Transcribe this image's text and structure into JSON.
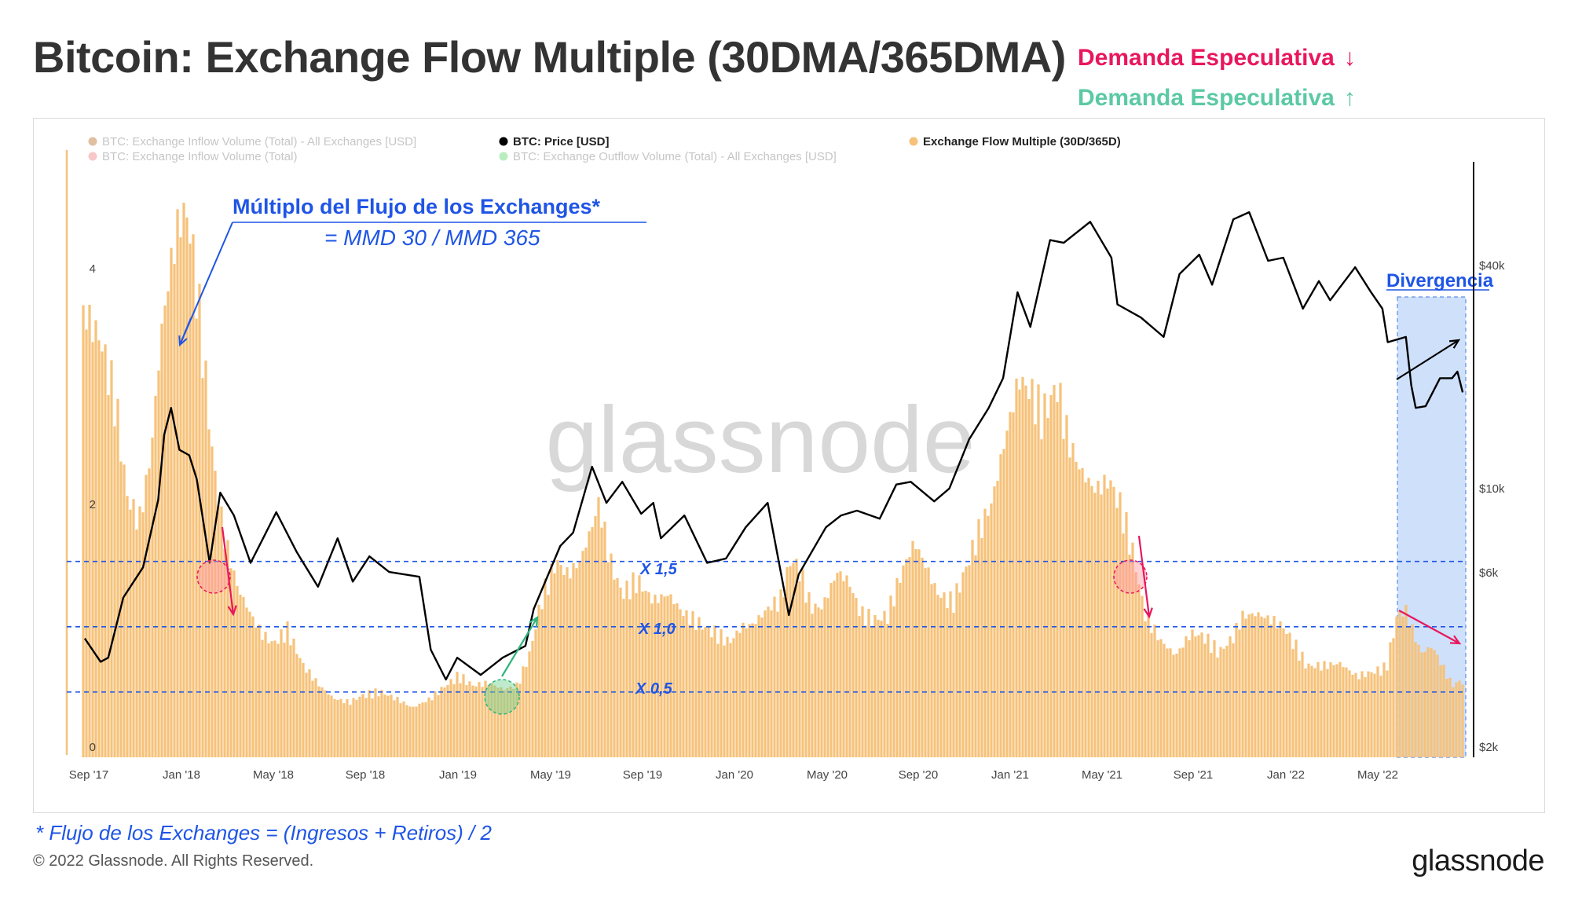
{
  "title": "Bitcoin: Exchange Flow Multiple (30DMA/365DMA)",
  "demand_down": {
    "label": "Demanda Especulativa",
    "arrow": "↓",
    "color": "#e8175d"
  },
  "demand_up": {
    "label": "Demanda Especulativa",
    "arrow": "↑",
    "color": "#5bc9a4"
  },
  "legend": [
    {
      "label": "BTC: Exchange Inflow Volume (Total) - All Exchanges [USD]",
      "color": "#c98a55",
      "faded": true
    },
    {
      "label": "BTC: Exchange Inflow Volume (Total)",
      "color": "#f29a9a",
      "faded": true
    },
    {
      "label": "BTC: Price [USD]",
      "color": "#000000",
      "faded": false
    },
    {
      "label": "BTC: Exchange Outflow Volume (Total) - All Exchanges [USD]",
      "color": "#7ee08a",
      "faded": true
    },
    {
      "label": "Exchange Flow Multiple (30D/365D)",
      "color": "#f6c27a",
      "faded": false
    }
  ],
  "annotations": {
    "main_label": "Múltiplo del Flujo de los Exchanges*",
    "main_formula": "= MMD 30 / MMD 365",
    "divergence": "Divergencia",
    "x15": "X 1,5",
    "x10": "X 1,0",
    "x05": "X 0,5"
  },
  "watermark": "glassnode",
  "footnote": "* Flujo de los Exchanges = (Ingresos + Retiros) / 2",
  "copyright": "© 2022 Glassnode. All Rights Reserved.",
  "brand": "glassnode",
  "colors": {
    "bars": "#f6c27a",
    "price": "#000000",
    "guides": "#1f55e6",
    "divergence_fill": "#cfe0fb",
    "down": "#e8175d",
    "up": "#2fb37c"
  },
  "chart_data": {
    "type": "bar",
    "title": "Bitcoin: Exchange Flow Multiple (30DMA/365DMA)",
    "x_ticks": [
      "Sep '17",
      "Jan '18",
      "May '18",
      "Sep '18",
      "Jan '19",
      "May '19",
      "Sep '19",
      "Jan '20",
      "May '20",
      "Sep '20",
      "Jan '21",
      "May '21",
      "Sep '21",
      "Jan '22",
      "May '22"
    ],
    "y_left": {
      "ticks": [
        "0",
        "2",
        "4"
      ],
      "range": [
        0,
        4.65
      ]
    },
    "y_right": {
      "ticks": [
        "$2k",
        "$6k",
        "$10k",
        "$40k"
      ],
      "scale": "log",
      "range": [
        2000,
        100000
      ]
    },
    "guides": [
      1.5,
      1.0,
      0.5
    ],
    "series": [
      {
        "name": "Exchange Flow Multiple (30D/365D)",
        "type": "bar",
        "points": [
          [
            "2017-08-25",
            3.4
          ],
          [
            "2017-09-15",
            3.2
          ],
          [
            "2017-10-05",
            2.7
          ],
          [
            "2017-10-20",
            2.0
          ],
          [
            "2017-11-05",
            1.8
          ],
          [
            "2017-11-20",
            2.3
          ],
          [
            "2017-12-05",
            3.3
          ],
          [
            "2017-12-20",
            3.9
          ],
          [
            "2018-01-01",
            4.18
          ],
          [
            "2018-01-10",
            4.1
          ],
          [
            "2018-01-25",
            3.3
          ],
          [
            "2018-02-10",
            2.3
          ],
          [
            "2018-02-25",
            1.7
          ],
          [
            "2018-03-15",
            1.3
          ],
          [
            "2018-04-01",
            1.1
          ],
          [
            "2018-04-15",
            0.95
          ],
          [
            "2018-05-01",
            0.87
          ],
          [
            "2018-05-20",
            0.97
          ],
          [
            "2018-06-10",
            0.7
          ],
          [
            "2018-07-01",
            0.55
          ],
          [
            "2018-07-20",
            0.45
          ],
          [
            "2018-08-10",
            0.42
          ],
          [
            "2018-08-25",
            0.47
          ],
          [
            "2018-09-20",
            0.5
          ],
          [
            "2018-10-10",
            0.45
          ],
          [
            "2018-11-01",
            0.38
          ],
          [
            "2018-11-25",
            0.45
          ],
          [
            "2018-12-15",
            0.55
          ],
          [
            "2019-01-01",
            0.62
          ],
          [
            "2019-01-20",
            0.55
          ],
          [
            "2019-02-10",
            0.57
          ],
          [
            "2019-03-01",
            0.52
          ],
          [
            "2019-03-20",
            0.55
          ],
          [
            "2019-04-05",
            0.8
          ],
          [
            "2019-04-20",
            1.2
          ],
          [
            "2019-05-10",
            1.5
          ],
          [
            "2019-05-25",
            1.4
          ],
          [
            "2019-06-10",
            1.5
          ],
          [
            "2019-06-25",
            1.75
          ],
          [
            "2019-07-05",
            1.95
          ],
          [
            "2019-07-20",
            1.5
          ],
          [
            "2019-08-05",
            1.25
          ],
          [
            "2019-08-25",
            1.35
          ],
          [
            "2019-09-15",
            1.2
          ],
          [
            "2019-10-05",
            1.25
          ],
          [
            "2019-10-25",
            1.1
          ],
          [
            "2019-11-15",
            1.02
          ],
          [
            "2019-12-05",
            0.95
          ],
          [
            "2019-12-25",
            0.88
          ],
          [
            "2020-01-10",
            1.0
          ],
          [
            "2020-01-25",
            1.02
          ],
          [
            "2020-02-15",
            1.15
          ],
          [
            "2020-03-01",
            1.2
          ],
          [
            "2020-03-15",
            1.52
          ],
          [
            "2020-03-25",
            1.45
          ],
          [
            "2020-04-10",
            1.15
          ],
          [
            "2020-04-25",
            1.15
          ],
          [
            "2020-05-15",
            1.42
          ],
          [
            "2020-05-30",
            1.35
          ],
          [
            "2020-06-15",
            1.1
          ],
          [
            "2020-07-01",
            1.05
          ],
          [
            "2020-07-20",
            1.08
          ],
          [
            "2020-08-10",
            1.45
          ],
          [
            "2020-08-25",
            1.65
          ],
          [
            "2020-09-10",
            1.45
          ],
          [
            "2020-09-25",
            1.25
          ],
          [
            "2020-10-15",
            1.18
          ],
          [
            "2020-11-01",
            1.45
          ],
          [
            "2020-11-20",
            1.75
          ],
          [
            "2020-12-05",
            1.95
          ],
          [
            "2020-12-25",
            2.5
          ],
          [
            "2021-01-10",
            2.9
          ],
          [
            "2021-01-25",
            2.8
          ],
          [
            "2021-02-10",
            2.6
          ],
          [
            "2021-03-01",
            2.85
          ],
          [
            "2021-03-15",
            2.45
          ],
          [
            "2021-04-01",
            2.2
          ],
          [
            "2021-04-20",
            2.05
          ],
          [
            "2021-05-10",
            2.12
          ],
          [
            "2021-05-25",
            1.9
          ],
          [
            "2021-06-10",
            1.55
          ],
          [
            "2021-06-25",
            1.1
          ],
          [
            "2021-07-15",
            0.9
          ],
          [
            "2021-08-05",
            0.78
          ],
          [
            "2021-08-25",
            0.95
          ],
          [
            "2021-09-10",
            0.93
          ],
          [
            "2021-10-01",
            0.8
          ],
          [
            "2021-10-20",
            0.92
          ],
          [
            "2021-11-01",
            1.08
          ],
          [
            "2021-11-20",
            1.1
          ],
          [
            "2021-12-10",
            1.05
          ],
          [
            "2021-12-25",
            1.0
          ],
          [
            "2022-01-10",
            0.85
          ],
          [
            "2022-01-25",
            0.7
          ],
          [
            "2022-02-15",
            0.7
          ],
          [
            "2022-03-10",
            0.72
          ],
          [
            "2022-04-01",
            0.62
          ],
          [
            "2022-04-20",
            0.65
          ],
          [
            "2022-05-10",
            0.68
          ],
          [
            "2022-05-25",
            1.1
          ],
          [
            "2022-06-05",
            1.12
          ],
          [
            "2022-06-15",
            0.95
          ],
          [
            "2022-06-25",
            0.8
          ],
          [
            "2022-07-10",
            0.85
          ],
          [
            "2022-07-25",
            0.68
          ],
          [
            "2022-08-05",
            0.55
          ],
          [
            "2022-08-15",
            0.58
          ]
        ]
      },
      {
        "name": "BTC: Price [USD]",
        "type": "line",
        "points": [
          [
            "2017-08-25",
            4300
          ],
          [
            "2017-09-15",
            3700
          ],
          [
            "2017-09-25",
            3800
          ],
          [
            "2017-10-15",
            5600
          ],
          [
            "2017-11-10",
            6800
          ],
          [
            "2017-11-30",
            10500
          ],
          [
            "2017-12-08",
            16000
          ],
          [
            "2017-12-17",
            19000
          ],
          [
            "2017-12-28",
            14500
          ],
          [
            "2018-01-10",
            14000
          ],
          [
            "2018-01-20",
            12000
          ],
          [
            "2018-02-06",
            7000
          ],
          [
            "2018-02-20",
            11000
          ],
          [
            "2018-03-10",
            9500
          ],
          [
            "2018-04-01",
            7000
          ],
          [
            "2018-04-15",
            8000
          ],
          [
            "2018-05-05",
            9700
          ],
          [
            "2018-06-01",
            7500
          ],
          [
            "2018-06-29",
            6000
          ],
          [
            "2018-07-25",
            8200
          ],
          [
            "2018-08-14",
            6200
          ],
          [
            "2018-09-05",
            7300
          ],
          [
            "2018-10-01",
            6600
          ],
          [
            "2018-11-10",
            6400
          ],
          [
            "2018-11-25",
            4000
          ],
          [
            "2018-12-15",
            3300
          ],
          [
            "2018-12-30",
            3800
          ],
          [
            "2019-01-30",
            3400
          ],
          [
            "2019-02-28",
            3800
          ],
          [
            "2019-03-30",
            4100
          ],
          [
            "2019-04-10",
            5200
          ],
          [
            "2019-05-15",
            7800
          ],
          [
            "2019-06-01",
            8500
          ],
          [
            "2019-06-26",
            13000
          ],
          [
            "2019-07-15",
            10300
          ],
          [
            "2019-08-05",
            11800
          ],
          [
            "2019-08-30",
            9600
          ],
          [
            "2019-09-15",
            10300
          ],
          [
            "2019-09-25",
            8200
          ],
          [
            "2019-10-26",
            9500
          ],
          [
            "2019-11-25",
            7000
          ],
          [
            "2019-12-20",
            7200
          ],
          [
            "2020-01-15",
            8800
          ],
          [
            "2020-02-13",
            10300
          ],
          [
            "2020-03-12",
            5000
          ],
          [
            "2020-03-25",
            6500
          ],
          [
            "2020-04-30",
            8800
          ],
          [
            "2020-05-20",
            9500
          ],
          [
            "2020-06-10",
            9800
          ],
          [
            "2020-07-10",
            9300
          ],
          [
            "2020-08-01",
            11600
          ],
          [
            "2020-08-20",
            11800
          ],
          [
            "2020-09-20",
            10400
          ],
          [
            "2020-10-10",
            11300
          ],
          [
            "2020-11-05",
            15500
          ],
          [
            "2020-12-01",
            19000
          ],
          [
            "2020-12-20",
            23000
          ],
          [
            "2021-01-08",
            40000
          ],
          [
            "2021-01-25",
            32000
          ],
          [
            "2021-02-20",
            56000
          ],
          [
            "2021-03-10",
            55000
          ],
          [
            "2021-04-14",
            63000
          ],
          [
            "2021-05-12",
            50000
          ],
          [
            "2021-05-20",
            37000
          ],
          [
            "2021-06-20",
            34000
          ],
          [
            "2021-07-20",
            30000
          ],
          [
            "2021-08-10",
            45000
          ],
          [
            "2021-09-05",
            51000
          ],
          [
            "2021-09-22",
            42000
          ],
          [
            "2021-10-20",
            64000
          ],
          [
            "2021-11-10",
            67000
          ],
          [
            "2021-12-05",
            49000
          ],
          [
            "2021-12-25",
            50000
          ],
          [
            "2022-01-20",
            36000
          ],
          [
            "2022-02-10",
            43000
          ],
          [
            "2022-02-25",
            38000
          ],
          [
            "2022-03-30",
            47000
          ],
          [
            "2022-04-20",
            40000
          ],
          [
            "2022-05-05",
            36000
          ],
          [
            "2022-05-12",
            29000
          ],
          [
            "2022-06-05",
            30000
          ],
          [
            "2022-06-12",
            22000
          ],
          [
            "2022-06-18",
            19000
          ],
          [
            "2022-07-01",
            19200
          ],
          [
            "2022-07-20",
            23000
          ],
          [
            "2022-08-05",
            23000
          ],
          [
            "2022-08-12",
            24000
          ],
          [
            "2022-08-19",
            21000
          ]
        ]
      }
    ]
  }
}
